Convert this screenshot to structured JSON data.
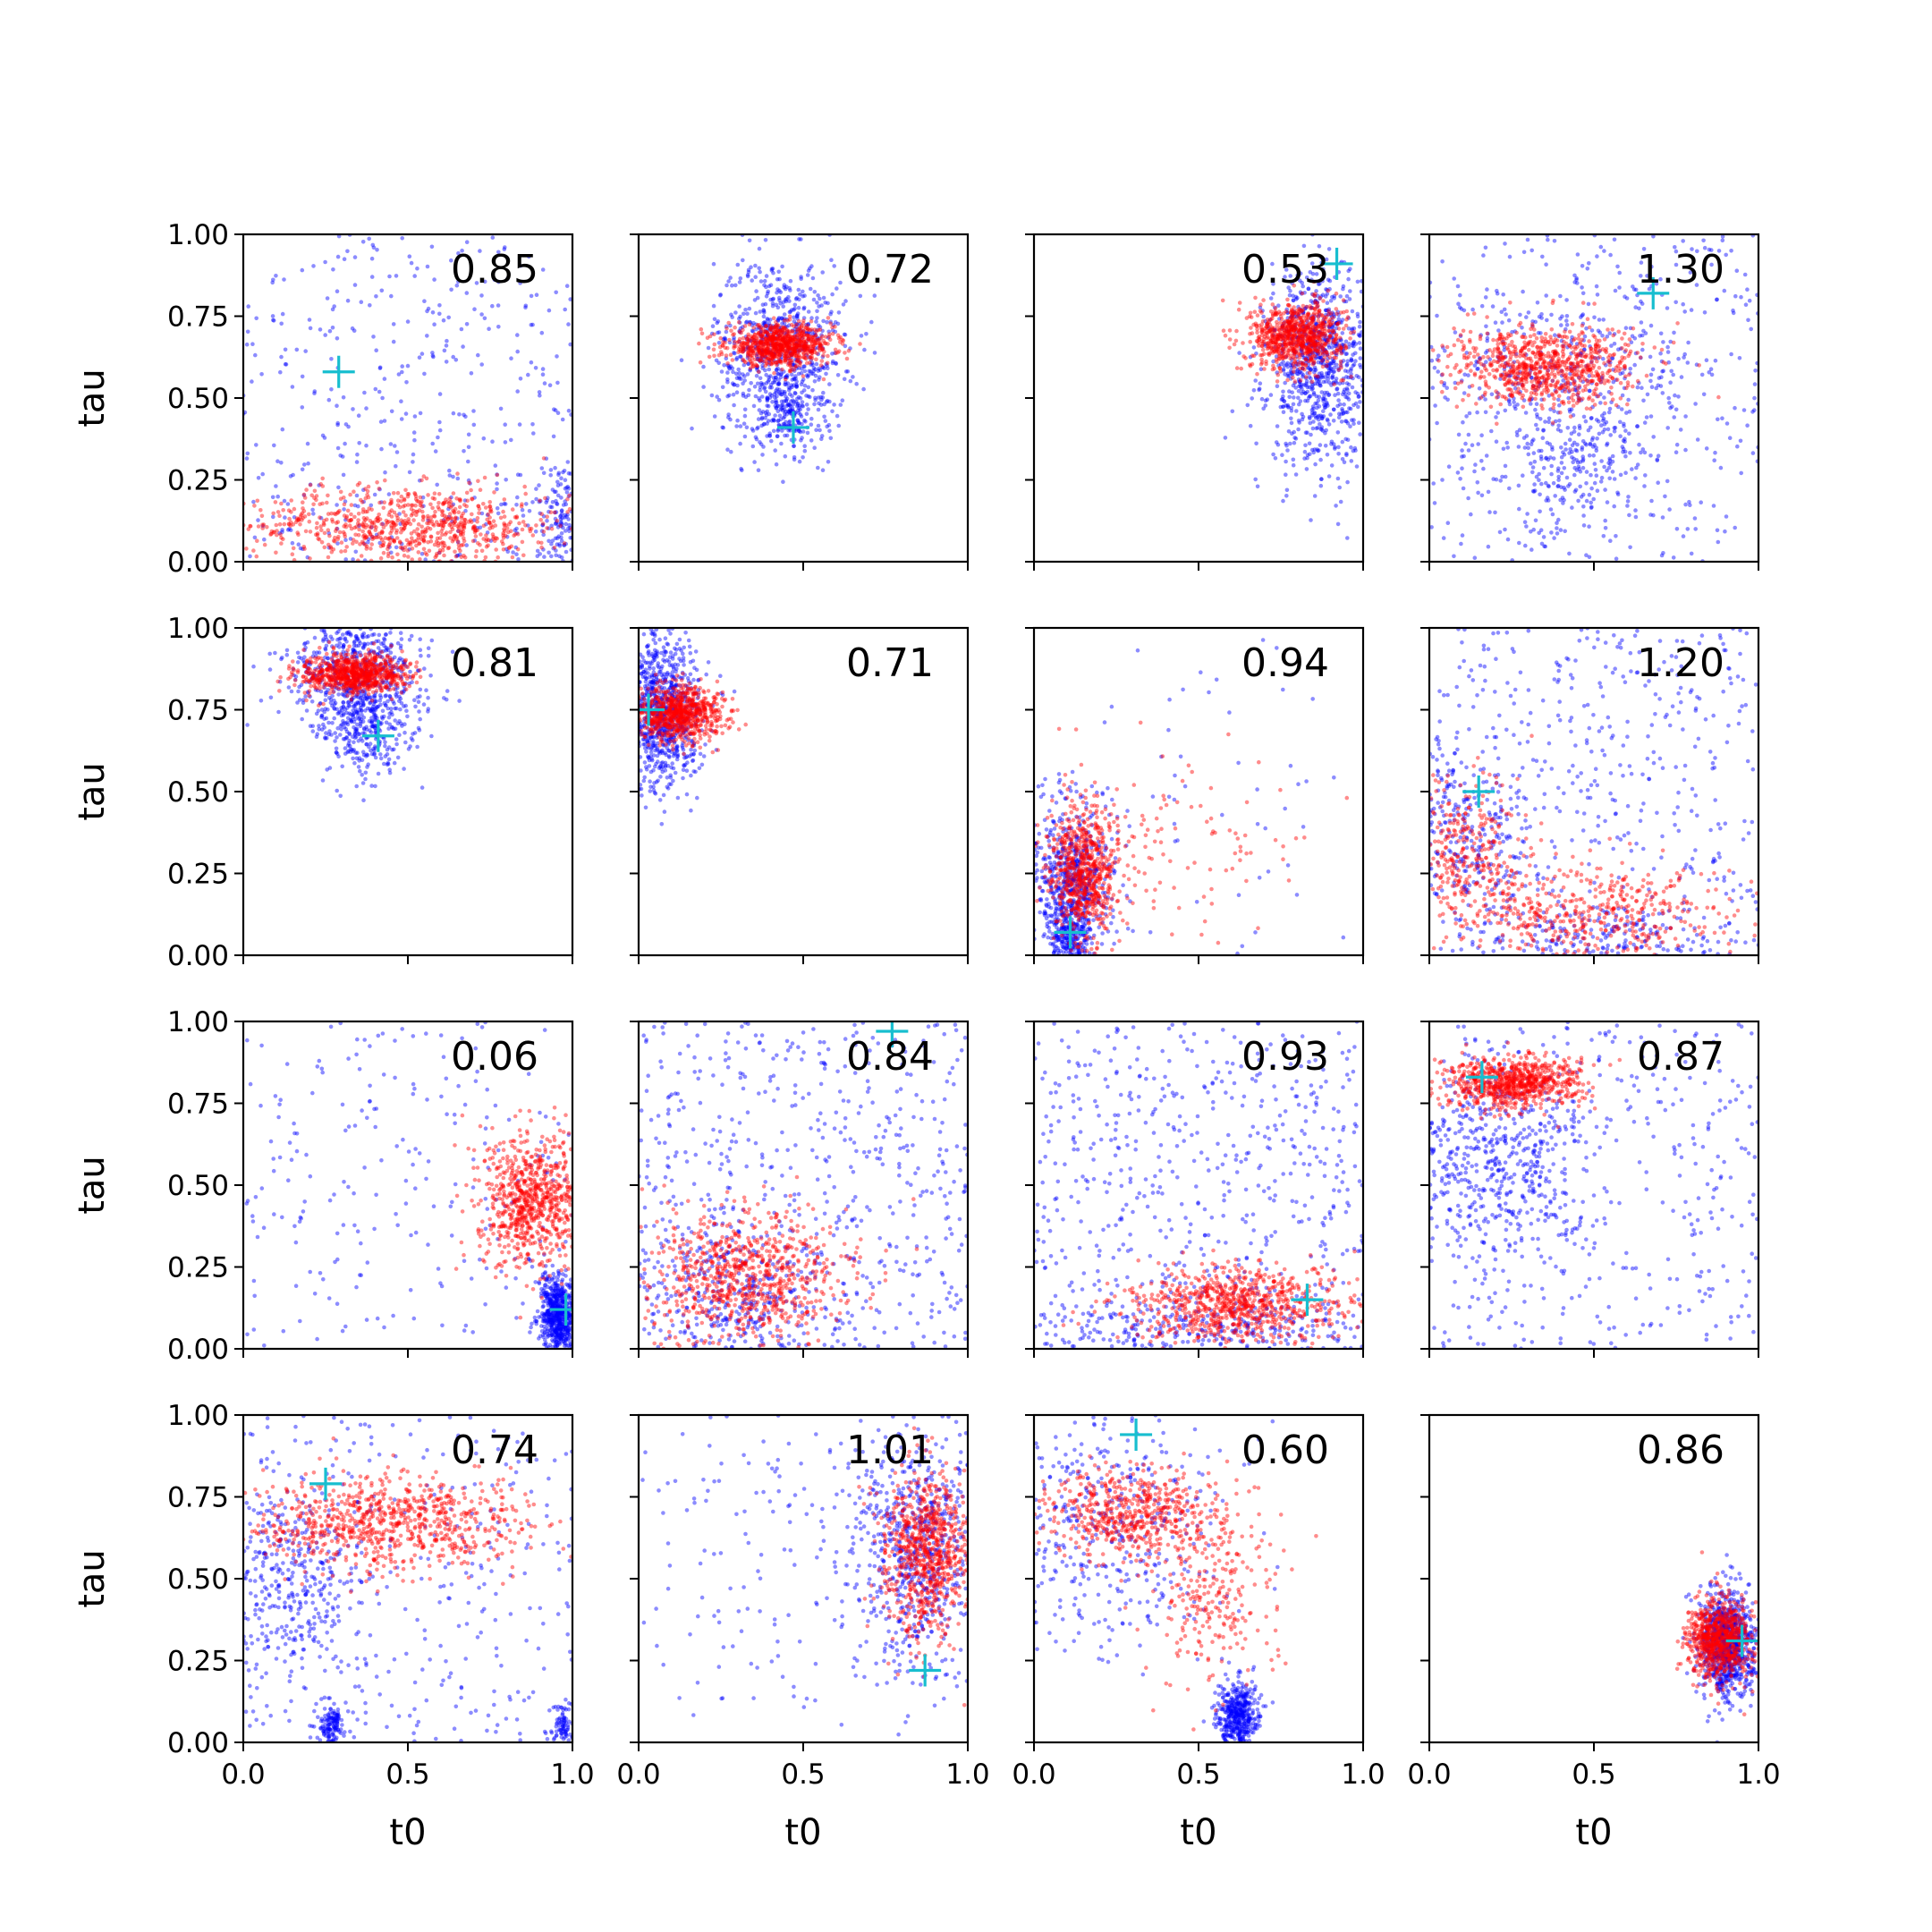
{
  "figure": {
    "type": "scatter-grid",
    "rows": 4,
    "cols": 4,
    "colors": {
      "blue_points": "#0000ff",
      "red_points": "#ff0000",
      "marker": "#17becf",
      "axes": "#000000"
    }
  },
  "chart_data": {
    "type": "scatter",
    "xlabel": "t0",
    "ylabel": "tau",
    "xlim": [
      0,
      1
    ],
    "ylim": [
      0,
      1
    ],
    "x_ticks": [
      "0.0",
      "0.5",
      "1.0"
    ],
    "y_ticks": [
      "0.00",
      "0.25",
      "0.50",
      "0.75",
      "1.00"
    ],
    "x_tick_values": [
      0,
      0.5,
      1
    ],
    "y_tick_values": [
      0,
      0.25,
      0.5,
      0.75,
      1
    ],
    "marker": "plus",
    "panels": [
      {
        "label": "0.85",
        "marker": [
          0.29,
          0.58
        ],
        "blue": [
          [
            0.0,
            1.0,
            0.0,
            1.0,
            0.37
          ],
          [
            0.12,
            0.95,
            0.0,
            0.18,
            0.4
          ],
          [
            0.97,
            0.03,
            0.12,
            0.1,
            0.13
          ]
        ],
        "red": [
          [
            0.5,
            0.25,
            0.11,
            0.06,
            0.7
          ]
        ]
      },
      {
        "label": "0.72",
        "marker": [
          0.47,
          0.41
        ],
        "blue": [
          [
            0.43,
            0.1,
            0.65,
            0.14,
            0.8
          ],
          [
            0.45,
            0.05,
            0.45,
            0.06,
            0.2
          ]
        ],
        "red": [
          [
            0.43,
            0.08,
            0.66,
            0.03,
            1.0
          ]
        ]
      },
      {
        "label": "0.53",
        "marker": [
          0.92,
          0.91
        ],
        "blue": [
          [
            0.87,
            0.08,
            0.6,
            0.15,
            1.0
          ]
        ],
        "red": [
          [
            0.8,
            0.07,
            0.69,
            0.05,
            1.0
          ]
        ]
      },
      {
        "label": "1.30",
        "marker": [
          0.68,
          0.82
        ],
        "blue": [
          [
            0.0,
            1.0,
            0.0,
            1.0,
            0.45
          ],
          [
            0.45,
            0.1,
            0.32,
            0.12,
            0.3
          ],
          [
            0.35,
            0.25,
            0.6,
            0.1,
            0.25
          ]
        ],
        "red": [
          [
            0.35,
            0.14,
            0.6,
            0.06,
            1.0
          ]
        ]
      },
      {
        "label": "0.81",
        "marker": [
          0.41,
          0.67
        ],
        "blue": [
          [
            0.34,
            0.1,
            0.86,
            0.1,
            0.7
          ],
          [
            0.38,
            0.06,
            0.7,
            0.08,
            0.3
          ]
        ],
        "red": [
          [
            0.34,
            0.08,
            0.86,
            0.03,
            1.0
          ]
        ]
      },
      {
        "label": "0.71",
        "marker": [
          0.03,
          0.75
        ],
        "blue": [
          [
            0.06,
            0.06,
            0.75,
            0.12,
            1.0
          ]
        ],
        "red": [
          [
            0.12,
            0.07,
            0.74,
            0.04,
            1.0
          ]
        ]
      },
      {
        "label": "0.94",
        "marker": [
          0.11,
          0.07
        ],
        "blue": [
          [
            0.11,
            0.06,
            0.22,
            0.12,
            0.75
          ],
          [
            0.11,
            0.03,
            0.05,
            0.04,
            0.2
          ],
          [
            0.45,
            0.3,
            0.4,
            0.3,
            0.1
          ]
        ],
        "red": [
          [
            0.15,
            0.05,
            0.25,
            0.1,
            0.85
          ],
          [
            0.4,
            0.2,
            0.35,
            0.15,
            0.15
          ]
        ]
      },
      {
        "label": "1.20",
        "marker": [
          0.15,
          0.5
        ],
        "blue": [
          [
            0.0,
            1.0,
            0.0,
            1.0,
            0.55
          ],
          [
            0.55,
            0.2,
            0.05,
            0.05,
            0.2
          ],
          [
            0.1,
            0.1,
            0.35,
            0.15,
            0.25
          ]
        ],
        "red": [
          [
            0.1,
            0.1,
            0.3,
            0.12,
            0.4
          ],
          [
            0.5,
            0.22,
            0.12,
            0.08,
            0.6
          ]
        ]
      },
      {
        "label": "0.06",
        "marker": [
          0.98,
          0.12
        ],
        "blue": [
          [
            0.96,
            0.03,
            0.1,
            0.06,
            0.75
          ],
          [
            0.0,
            1.0,
            0.0,
            1.0,
            0.25
          ]
        ],
        "red": [
          [
            0.88,
            0.08,
            0.45,
            0.1,
            1.0
          ]
        ]
      },
      {
        "label": "0.84",
        "marker": [
          0.77,
          0.97
        ],
        "blue": [
          [
            0.0,
            1.0,
            0.0,
            1.0,
            0.65
          ],
          [
            0.3,
            0.15,
            0.15,
            0.12,
            0.35
          ]
        ],
        "red": [
          [
            0.33,
            0.15,
            0.22,
            0.1,
            1.0
          ]
        ]
      },
      {
        "label": "0.93",
        "marker": [
          0.83,
          0.15
        ],
        "blue": [
          [
            0.0,
            1.0,
            0.0,
            1.0,
            0.65
          ],
          [
            0.5,
            0.3,
            0.05,
            0.06,
            0.35
          ]
        ],
        "red": [
          [
            0.62,
            0.17,
            0.13,
            0.06,
            1.0
          ]
        ]
      },
      {
        "label": "0.87",
        "marker": [
          0.16,
          0.83
        ],
        "blue": [
          [
            0.0,
            1.0,
            0.0,
            1.0,
            0.45
          ],
          [
            0.2,
            0.15,
            0.55,
            0.15,
            0.55
          ]
        ],
        "red": [
          [
            0.25,
            0.1,
            0.81,
            0.04,
            1.0
          ]
        ]
      },
      {
        "label": "0.74",
        "marker": [
          0.25,
          0.79
        ],
        "blue": [
          [
            0.0,
            1.0,
            0.0,
            1.0,
            0.35
          ],
          [
            0.15,
            0.12,
            0.5,
            0.15,
            0.4
          ],
          [
            0.27,
            0.02,
            0.05,
            0.03,
            0.15
          ],
          [
            0.97,
            0.02,
            0.05,
            0.04,
            0.1
          ]
        ],
        "red": [
          [
            0.45,
            0.2,
            0.67,
            0.07,
            1.0
          ]
        ]
      },
      {
        "label": "1.01",
        "marker": [
          0.87,
          0.22
        ],
        "blue": [
          [
            0.85,
            0.1,
            0.6,
            0.2,
            0.75
          ],
          [
            0.5,
            0.3,
            0.6,
            0.3,
            0.25
          ]
        ],
        "red": [
          [
            0.88,
            0.07,
            0.58,
            0.12,
            1.0
          ]
        ]
      },
      {
        "label": "0.60",
        "marker": [
          0.31,
          0.94
        ],
        "blue": [
          [
            0.2,
            0.18,
            0.65,
            0.2,
            0.5
          ],
          [
            0.62,
            0.03,
            0.08,
            0.05,
            0.5
          ]
        ],
        "red": [
          [
            0.3,
            0.14,
            0.7,
            0.07,
            0.7
          ],
          [
            0.55,
            0.1,
            0.45,
            0.12,
            0.3
          ]
        ]
      },
      {
        "label": "0.86",
        "marker": [
          0.95,
          0.31
        ],
        "blue": [
          [
            0.9,
            0.04,
            0.3,
            0.08,
            1.0
          ]
        ],
        "red": [
          [
            0.88,
            0.05,
            0.32,
            0.06,
            1.0
          ]
        ]
      }
    ]
  }
}
